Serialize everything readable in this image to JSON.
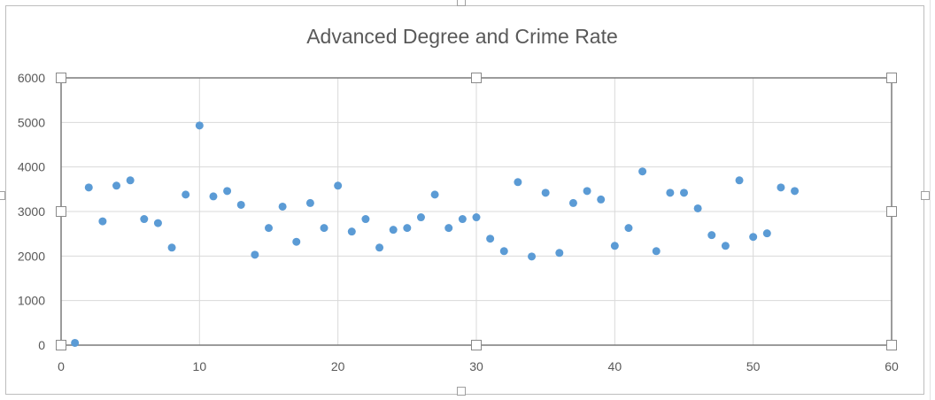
{
  "chart_data": {
    "type": "scatter",
    "title": "Advanced Degree and Crime Rate",
    "xlabel": "",
    "ylabel": "",
    "xlim": [
      0,
      60
    ],
    "ylim": [
      0,
      6000
    ],
    "x_ticks": [
      "0",
      "10",
      "20",
      "30",
      "40",
      "50",
      "60"
    ],
    "y_ticks": [
      "0",
      "1000",
      "2000",
      "3000",
      "4000",
      "5000",
      "6000"
    ],
    "grid": true,
    "legend": "none",
    "marker_color": "#5b9bd5",
    "gridline_color": "#d9d9d9",
    "series": [
      {
        "points": [
          [
            1,
            50
          ],
          [
            2,
            3540
          ],
          [
            3,
            2780
          ],
          [
            4,
            3580
          ],
          [
            5,
            3700
          ],
          [
            6,
            2830
          ],
          [
            7,
            2740
          ],
          [
            8,
            2190
          ],
          [
            9,
            3380
          ],
          [
            10,
            4930
          ],
          [
            11,
            3340
          ],
          [
            12,
            3460
          ],
          [
            13,
            3150
          ],
          [
            14,
            2030
          ],
          [
            15,
            2630
          ],
          [
            16,
            3110
          ],
          [
            17,
            2320
          ],
          [
            18,
            3190
          ],
          [
            19,
            2630
          ],
          [
            20,
            3580
          ],
          [
            21,
            2550
          ],
          [
            22,
            2830
          ],
          [
            23,
            2190
          ],
          [
            24,
            2590
          ],
          [
            25,
            2630
          ],
          [
            26,
            2870
          ],
          [
            27,
            3380
          ],
          [
            28,
            2630
          ],
          [
            29,
            2830
          ],
          [
            30,
            2870
          ],
          [
            31,
            2390
          ],
          [
            32,
            2110
          ],
          [
            33,
            3660
          ],
          [
            34,
            1990
          ],
          [
            35,
            3420
          ],
          [
            36,
            2070
          ],
          [
            37,
            3190
          ],
          [
            38,
            3460
          ],
          [
            39,
            3270
          ],
          [
            40,
            2230
          ],
          [
            41,
            2630
          ],
          [
            42,
            3900
          ],
          [
            43,
            2110
          ],
          [
            44,
            3420
          ],
          [
            45,
            3420
          ],
          [
            46,
            3070
          ],
          [
            47,
            2470
          ],
          [
            48,
            2230
          ],
          [
            49,
            3700
          ],
          [
            50,
            2430
          ],
          [
            51,
            2510
          ],
          [
            52,
            3540
          ],
          [
            53,
            3460
          ]
        ]
      }
    ]
  }
}
